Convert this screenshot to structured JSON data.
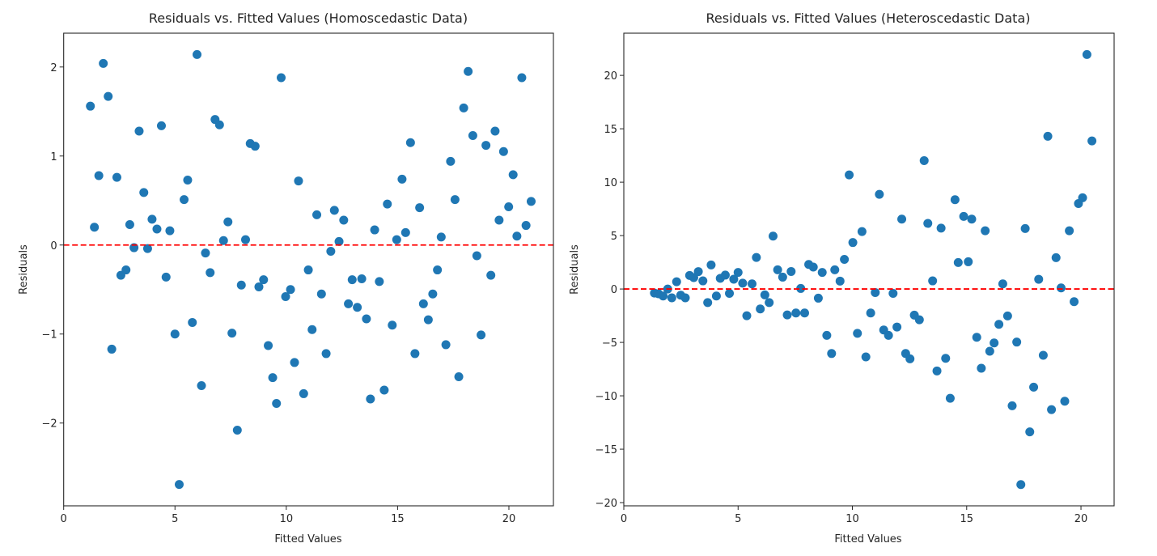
{
  "colors": {
    "point": "#1f77b4",
    "zero_line": "#ff0000",
    "axis": "#262626"
  },
  "chart_data": [
    {
      "type": "scatter",
      "title": "Residuals vs. Fitted Values (Homoscedastic Data)",
      "xlabel": "Fitted Values",
      "ylabel": "Residuals",
      "xlim": [
        0,
        22
      ],
      "ylim": [
        -2.93,
        2.38
      ],
      "xticks": [
        0,
        5,
        10,
        15,
        20
      ],
      "xtick_labels": [
        "0",
        "5",
        "10",
        "15",
        "20"
      ],
      "yticks": [
        -2,
        -1,
        0,
        1,
        2
      ],
      "ytick_labels": [
        "−2",
        "−1",
        "0",
        "1",
        "2"
      ],
      "reference_line": {
        "y": 0,
        "style": "dashed"
      },
      "x": [
        1.2,
        1.38,
        1.58,
        1.78,
        2.0,
        2.16,
        2.39,
        2.57,
        2.8,
        2.97,
        3.16,
        3.39,
        3.6,
        3.77,
        3.97,
        4.19,
        4.39,
        4.6,
        4.77,
        5.0,
        5.19,
        5.41,
        5.57,
        5.78,
        5.99,
        6.19,
        6.37,
        6.58,
        6.8,
        7.0,
        7.18,
        7.38,
        7.56,
        7.8,
        7.98,
        8.17,
        8.38,
        8.6,
        8.77,
        8.98,
        9.19,
        9.39,
        9.56,
        9.77,
        9.97,
        10.19,
        10.37,
        10.55,
        10.78,
        10.99,
        11.16,
        11.37,
        11.58,
        11.79,
        12.0,
        12.16,
        12.37,
        12.58,
        12.79,
        12.96,
        13.19,
        13.39,
        13.6,
        13.78,
        13.97,
        14.18,
        14.4,
        14.54,
        14.76,
        14.96,
        15.2,
        15.36,
        15.58,
        15.78,
        15.99,
        16.16,
        16.38,
        16.58,
        16.79,
        16.96,
        17.17,
        17.38,
        17.58,
        17.75,
        17.97,
        18.17,
        18.38,
        18.56,
        18.75,
        18.97,
        19.19,
        19.38,
        19.56,
        19.76,
        19.99,
        20.19,
        20.36,
        20.58,
        20.77,
        21.0
      ],
      "y": [
        1.56,
        0.2,
        0.78,
        2.04,
        1.67,
        -1.17,
        0.76,
        -0.34,
        -0.28,
        0.23,
        -0.03,
        1.28,
        0.59,
        -0.04,
        0.29,
        0.18,
        1.34,
        -0.36,
        0.16,
        -1.0,
        -2.69,
        0.51,
        0.73,
        -0.87,
        2.14,
        -1.58,
        -0.09,
        -0.31,
        1.41,
        1.35,
        0.05,
        0.26,
        -0.99,
        -2.08,
        -0.45,
        0.06,
        1.14,
        1.11,
        -0.47,
        -0.39,
        -1.13,
        -1.49,
        -1.78,
        1.88,
        -0.58,
        -0.5,
        -1.32,
        0.72,
        -1.67,
        -0.28,
        -0.95,
        0.34,
        -0.55,
        -1.22,
        -0.07,
        0.39,
        0.04,
        0.28,
        -0.66,
        -0.39,
        -0.7,
        -0.38,
        -0.83,
        -1.73,
        0.17,
        -0.41,
        -1.63,
        0.46,
        -0.9,
        0.06,
        0.74,
        0.14,
        1.15,
        -1.22,
        0.42,
        -0.66,
        -0.84,
        -0.55,
        -0.28,
        0.09,
        -1.12,
        0.94,
        0.51,
        -1.48,
        1.54,
        1.95,
        1.23,
        -0.12,
        -1.01,
        1.12,
        -0.34,
        1.28,
        0.28,
        1.05,
        0.43,
        0.79,
        0.1,
        1.88,
        0.22,
        0.49
      ]
    },
    {
      "type": "scatter",
      "title": "Residuals vs. Fitted Values (Heteroscedastic Data)",
      "xlabel": "Fitted Values",
      "ylabel": "Residuals",
      "xlim": [
        0,
        21.45
      ],
      "ylim": [
        -20.3,
        23.95
      ],
      "xticks": [
        0,
        5,
        10,
        15,
        20
      ],
      "xtick_labels": [
        "0",
        "5",
        "10",
        "15",
        "20"
      ],
      "yticks": [
        -20,
        -15,
        -10,
        -5,
        0,
        5,
        10,
        15,
        20
      ],
      "ytick_labels": [
        "−20",
        "−15",
        "−10",
        "−5",
        "0",
        "5",
        "10",
        "15",
        "20"
      ],
      "reference_line": {
        "y": 0,
        "style": "dashed"
      },
      "x": [
        1.34,
        1.52,
        1.72,
        1.92,
        2.1,
        2.31,
        2.49,
        2.69,
        2.88,
        3.06,
        3.26,
        3.46,
        3.67,
        3.82,
        4.05,
        4.22,
        4.44,
        4.62,
        4.81,
        5.0,
        5.2,
        5.38,
        5.61,
        5.8,
        5.97,
        6.17,
        6.36,
        6.53,
        6.73,
        6.95,
        7.15,
        7.32,
        7.53,
        7.74,
        7.91,
        8.09,
        8.29,
        8.51,
        8.68,
        8.88,
        9.09,
        9.23,
        9.46,
        9.65,
        9.86,
        10.02,
        10.22,
        10.42,
        10.59,
        10.8,
        11.0,
        11.18,
        11.37,
        11.58,
        11.78,
        11.95,
        12.16,
        12.33,
        12.52,
        12.71,
        12.93,
        13.14,
        13.3,
        13.51,
        13.7,
        13.88,
        14.08,
        14.28,
        14.49,
        14.63,
        14.87,
        15.07,
        15.22,
        15.44,
        15.64,
        15.81,
        16.01,
        16.2,
        16.41,
        16.58,
        16.79,
        16.99,
        17.19,
        17.37,
        17.56,
        17.76,
        17.93,
        18.15,
        18.35,
        18.55,
        18.71,
        18.91,
        19.13,
        19.29,
        19.49,
        19.7,
        19.89,
        20.07,
        20.26,
        20.48
      ],
      "y": [
        -0.38,
        -0.45,
        -0.66,
        0.0,
        -0.83,
        0.68,
        -0.58,
        -0.83,
        1.27,
        1.07,
        1.63,
        0.76,
        -1.27,
        2.25,
        -0.66,
        1.0,
        1.3,
        -0.41,
        0.92,
        1.55,
        0.55,
        -2.5,
        0.48,
        2.95,
        -1.87,
        -0.55,
        -1.27,
        4.95,
        1.8,
        1.11,
        -2.43,
        1.64,
        -2.25,
        0.05,
        -2.25,
        2.3,
        2.05,
        -0.86,
        1.55,
        -4.34,
        -6.04,
        1.8,
        0.74,
        2.77,
        10.68,
        4.35,
        -4.15,
        5.38,
        -6.36,
        -2.25,
        -0.33,
        8.86,
        -3.84,
        -4.34,
        -0.41,
        -3.56,
        6.54,
        -6.04,
        -6.54,
        -2.45,
        -2.88,
        12.02,
        6.14,
        0.76,
        -7.67,
        5.7,
        -6.49,
        -10.23,
        8.36,
        2.48,
        6.8,
        2.55,
        6.54,
        -4.52,
        -7.42,
        5.45,
        -5.83,
        -5.05,
        -3.31,
        0.48,
        -2.52,
        -10.93,
        -4.97,
        -18.31,
        5.66,
        -13.38,
        -9.19,
        0.91,
        -6.21,
        14.3,
        -11.29,
        2.93,
        0.1,
        -10.51,
        5.45,
        -1.19,
        8.0,
        8.54,
        21.95,
        13.86
      ]
    }
  ]
}
